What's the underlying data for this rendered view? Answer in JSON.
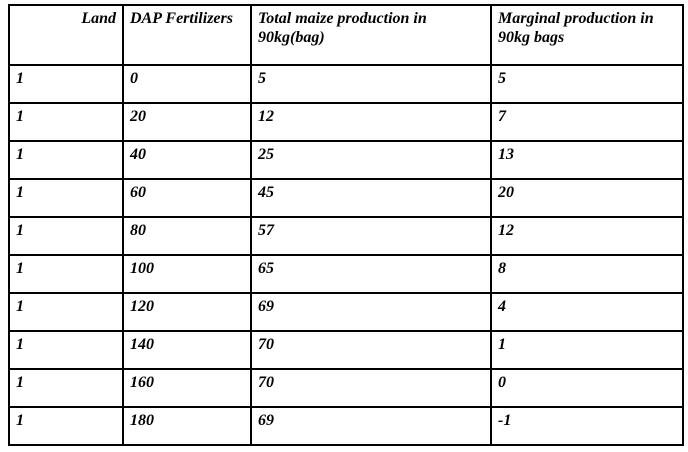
{
  "page": {
    "background_color": "#ffffff",
    "border_color": "#000000",
    "text_color": "#000000"
  },
  "table": {
    "columns": [
      {
        "key": "land",
        "label": "Land"
      },
      {
        "key": "dap",
        "label": "DAP Fertilizers"
      },
      {
        "key": "total",
        "label": "Total maize production in 90kg(bag)"
      },
      {
        "key": "marginal",
        "label": "Marginal production in 90kg bags"
      }
    ],
    "rows": [
      {
        "land": "1",
        "dap": "0",
        "total": "5",
        "marginal": "5"
      },
      {
        "land": "1",
        "dap": "20",
        "total": "12",
        "marginal": "7"
      },
      {
        "land": "1",
        "dap": "40",
        "total": "25",
        "marginal": "13"
      },
      {
        "land": "1",
        "dap": "60",
        "total": "45",
        "marginal": "20"
      },
      {
        "land": "1",
        "dap": "80",
        "total": "57",
        "marginal": "12"
      },
      {
        "land": "1",
        "dap": "100",
        "total": "65",
        "marginal": "8"
      },
      {
        "land": "1",
        "dap": "120",
        "total": "69",
        "marginal": "4"
      },
      {
        "land": "1",
        "dap": "140",
        "total": "70",
        "marginal": "1"
      },
      {
        "land": "1",
        "dap": "160",
        "total": "70",
        "marginal": "0"
      },
      {
        "land": "1",
        "dap": "180",
        "total": "69",
        "marginal": "-1"
      }
    ]
  },
  "chart_data": {
    "type": "table",
    "title": "",
    "categories": [
      "Land",
      "DAP Fertilizers",
      "Total maize production in 90kg(bag)",
      "Marginal production in 90kg bags"
    ],
    "series": [
      {
        "name": "Land",
        "values": [
          1,
          1,
          1,
          1,
          1,
          1,
          1,
          1,
          1,
          1
        ]
      },
      {
        "name": "DAP Fertilizers",
        "values": [
          0,
          20,
          40,
          60,
          80,
          100,
          120,
          140,
          160,
          180
        ]
      },
      {
        "name": "Total maize production in 90kg(bag)",
        "values": [
          5,
          12,
          25,
          45,
          57,
          65,
          69,
          70,
          70,
          69
        ]
      },
      {
        "name": "Marginal production in 90kg bags",
        "values": [
          5,
          7,
          13,
          20,
          12,
          8,
          4,
          1,
          0,
          -1
        ]
      }
    ]
  }
}
